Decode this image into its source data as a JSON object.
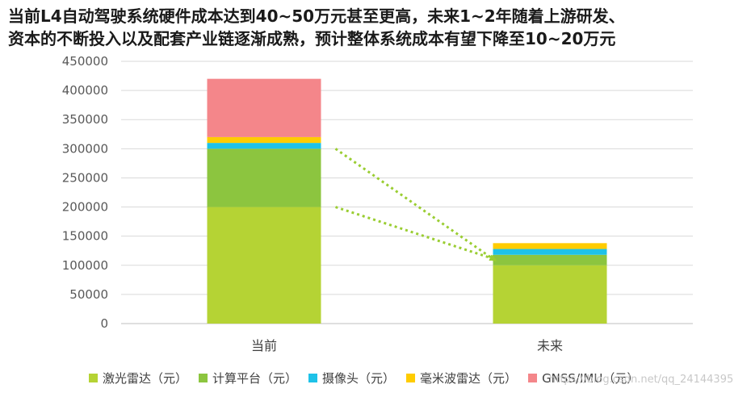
{
  "chart_data": {
    "type": "bar",
    "stacked": true,
    "title": "当前L4自动驾驶系统硬件成本达到40~50万元甚至更高，未来1~2年随着上游研发、资本的不断投入以及配套产业链逐渐成熟，预计整体系统成本有望下降至10~20万元",
    "title_lines": [
      "当前L4自动驾驶系统硬件成本达到40~50万元甚至更高，未来1~2年随着上游研发、",
      "资本的不断投入以及配套产业链逐渐成熟，预计整体系统成本有望下降至10~20万元"
    ],
    "categories": [
      "当前",
      "未来"
    ],
    "series": [
      {
        "name": "激光雷达（元）",
        "color": "#b5d334",
        "values": [
          200000,
          100000
        ]
      },
      {
        "name": "计算平台（元）",
        "color": "#8cc53f",
        "values": [
          100000,
          18000
        ]
      },
      {
        "name": "摄像头（元）",
        "color": "#1ec2e8",
        "values": [
          10000,
          10000
        ]
      },
      {
        "name": "毫米波雷达（元）",
        "color": "#ffcc00",
        "values": [
          10000,
          10000
        ]
      },
      {
        "name": "GNSS/IMU（元）",
        "color": "#f4868a",
        "values": [
          100000,
          0
        ]
      }
    ],
    "ylim": [
      0,
      450000
    ],
    "yticks": [
      "0",
      "50000",
      "100000",
      "150000",
      "200000",
      "250000",
      "300000",
      "350000",
      "400000",
      "450000"
    ],
    "grid": true,
    "legend": "bottom",
    "xlabel": "",
    "ylabel": "",
    "arrow_color": "#9acd32"
  },
  "watermark": "https://blog.csdn.net/qq_24144395"
}
